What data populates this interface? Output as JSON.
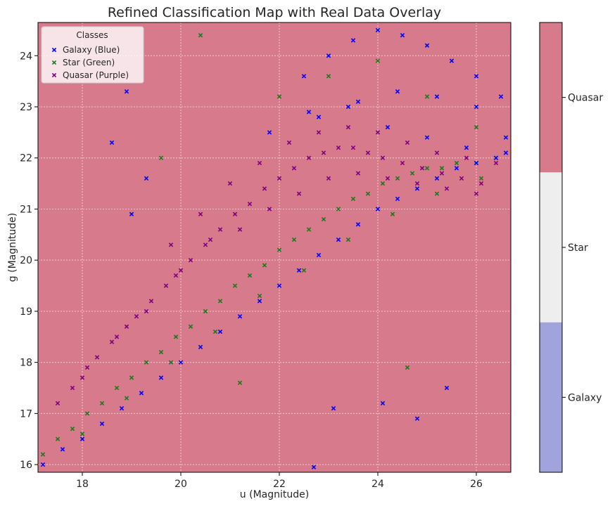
{
  "chart_data": {
    "type": "scatter",
    "title": "Refined Classification Map with Real Data Overlay",
    "xlabel": "u (Magnitude)",
    "ylabel": "g (Magnitude)",
    "xlim": [
      17.1,
      26.7
    ],
    "ylim": [
      15.85,
      24.65
    ],
    "x_ticks": [
      18,
      20,
      22,
      24,
      26
    ],
    "y_ticks": [
      16,
      17,
      18,
      19,
      20,
      21,
      22,
      23,
      24
    ],
    "grid": true,
    "background_region": {
      "class": "Quasar",
      "color": "#d77b8c"
    },
    "legend": {
      "title": "Classes",
      "placement": "top-left",
      "entries": [
        {
          "label": "Galaxy (Blue)",
          "color": "#0000ff",
          "marker": "x"
        },
        {
          "label": "Star (Green)",
          "color": "#1a7a1a",
          "marker": "x"
        },
        {
          "label": "Quasar (Purple)",
          "color": "#800080",
          "marker": "x"
        }
      ]
    },
    "colorbar": {
      "segments": [
        {
          "label": "Quasar",
          "color": "#d77b8c"
        },
        {
          "label": "Star",
          "color": "#eeeeee"
        },
        {
          "label": "Galaxy",
          "color": "#a0a3dc"
        }
      ]
    },
    "series": [
      {
        "name": "Quasar (Purple)",
        "color": "#800080",
        "x": [
          17.5,
          17.8,
          18.1,
          18.3,
          18.6,
          18.9,
          19.1,
          19.4,
          19.7,
          19.9,
          20.2,
          20.5,
          20.8,
          21.1,
          21.4,
          21.7,
          22.0,
          22.3,
          22.6,
          22.9,
          23.2,
          23.5,
          23.8,
          24.1,
          24.5,
          24.9,
          25.3,
          25.7,
          26.1,
          18.0,
          18.7,
          19.3,
          20.0,
          20.6,
          21.2,
          21.8,
          22.4,
          23.0,
          23.6,
          24.2,
          24.8,
          25.4,
          26.0,
          19.8,
          20.4,
          21.0,
          21.6,
          22.2,
          22.8,
          23.4,
          24.0,
          24.6,
          25.2,
          25.8,
          26.4
        ],
        "y": [
          17.2,
          17.5,
          17.9,
          18.1,
          18.4,
          18.7,
          18.9,
          19.2,
          19.5,
          19.7,
          20.0,
          20.3,
          20.6,
          20.9,
          21.1,
          21.4,
          21.6,
          21.8,
          22.0,
          22.1,
          22.2,
          22.2,
          22.1,
          22.0,
          21.9,
          21.8,
          21.7,
          21.6,
          21.5,
          17.7,
          18.5,
          19.0,
          19.8,
          20.4,
          20.6,
          21.0,
          21.3,
          21.6,
          21.7,
          21.6,
          21.5,
          21.4,
          21.3,
          20.3,
          20.9,
          21.5,
          21.9,
          22.3,
          22.5,
          22.6,
          22.5,
          22.3,
          22.1,
          22.0,
          21.9
        ]
      },
      {
        "name": "Star (Green)",
        "color": "#1a7a1a",
        "x": [
          17.2,
          17.5,
          17.8,
          18.1,
          18.4,
          18.7,
          19.0,
          19.3,
          19.6,
          19.9,
          20.2,
          20.5,
          20.8,
          21.1,
          21.4,
          21.7,
          22.0,
          22.3,
          22.6,
          22.9,
          23.2,
          23.5,
          23.8,
          24.1,
          24.4,
          24.7,
          25.0,
          25.3,
          25.6,
          26.0,
          26.4,
          18.0,
          18.9,
          19.8,
          20.7,
          21.6,
          22.5,
          23.4,
          24.3,
          25.2,
          26.1,
          22.0,
          23.0,
          24.0,
          25.0,
          26.0,
          20.4,
          19.6,
          21.2,
          24.6
        ],
        "y": [
          16.2,
          16.5,
          16.7,
          17.0,
          17.2,
          17.5,
          17.7,
          18.0,
          18.2,
          18.5,
          18.7,
          19.0,
          19.2,
          19.5,
          19.7,
          19.9,
          20.2,
          20.4,
          20.6,
          20.8,
          21.0,
          21.2,
          21.3,
          21.5,
          21.6,
          21.7,
          21.8,
          21.8,
          21.9,
          21.9,
          22.0,
          16.6,
          17.3,
          18.0,
          18.6,
          19.3,
          19.8,
          20.4,
          20.9,
          21.3,
          21.6,
          23.2,
          23.6,
          23.9,
          23.2,
          22.6,
          24.4,
          22.0,
          17.6,
          17.9
        ]
      },
      {
        "name": "Galaxy (Blue)",
        "color": "#0000ff",
        "x": [
          17.2,
          17.6,
          18.0,
          18.4,
          18.8,
          19.2,
          19.6,
          20.0,
          20.4,
          20.8,
          21.2,
          21.6,
          22.0,
          22.4,
          22.8,
          23.2,
          23.6,
          24.0,
          24.4,
          24.8,
          25.2,
          25.6,
          26.0,
          26.4,
          26.6,
          22.5,
          23.0,
          23.5,
          24.0,
          24.5,
          25.0,
          25.5,
          26.0,
          26.5,
          22.8,
          23.6,
          24.4,
          25.2,
          26.0,
          21.8,
          22.6,
          23.4,
          24.2,
          25.0,
          25.8,
          26.6,
          18.9,
          19.3,
          18.6,
          19.0,
          22.7,
          24.8,
          25.4,
          24.1,
          23.1
        ],
        "y": [
          16.0,
          16.3,
          16.5,
          16.8,
          17.1,
          17.4,
          17.7,
          18.0,
          18.3,
          18.6,
          18.9,
          19.2,
          19.5,
          19.8,
          20.1,
          20.4,
          20.7,
          21.0,
          21.2,
          21.4,
          21.6,
          21.8,
          21.9,
          22.0,
          22.1,
          23.6,
          24.0,
          24.3,
          24.5,
          24.4,
          24.2,
          23.9,
          23.6,
          23.2,
          22.8,
          23.1,
          23.3,
          23.2,
          23.0,
          22.5,
          22.9,
          23.0,
          22.6,
          22.4,
          22.2,
          22.4,
          23.3,
          21.6,
          22.3,
          20.9,
          15.95,
          16.9,
          17.5,
          17.2,
          17.1
        ]
      }
    ]
  }
}
